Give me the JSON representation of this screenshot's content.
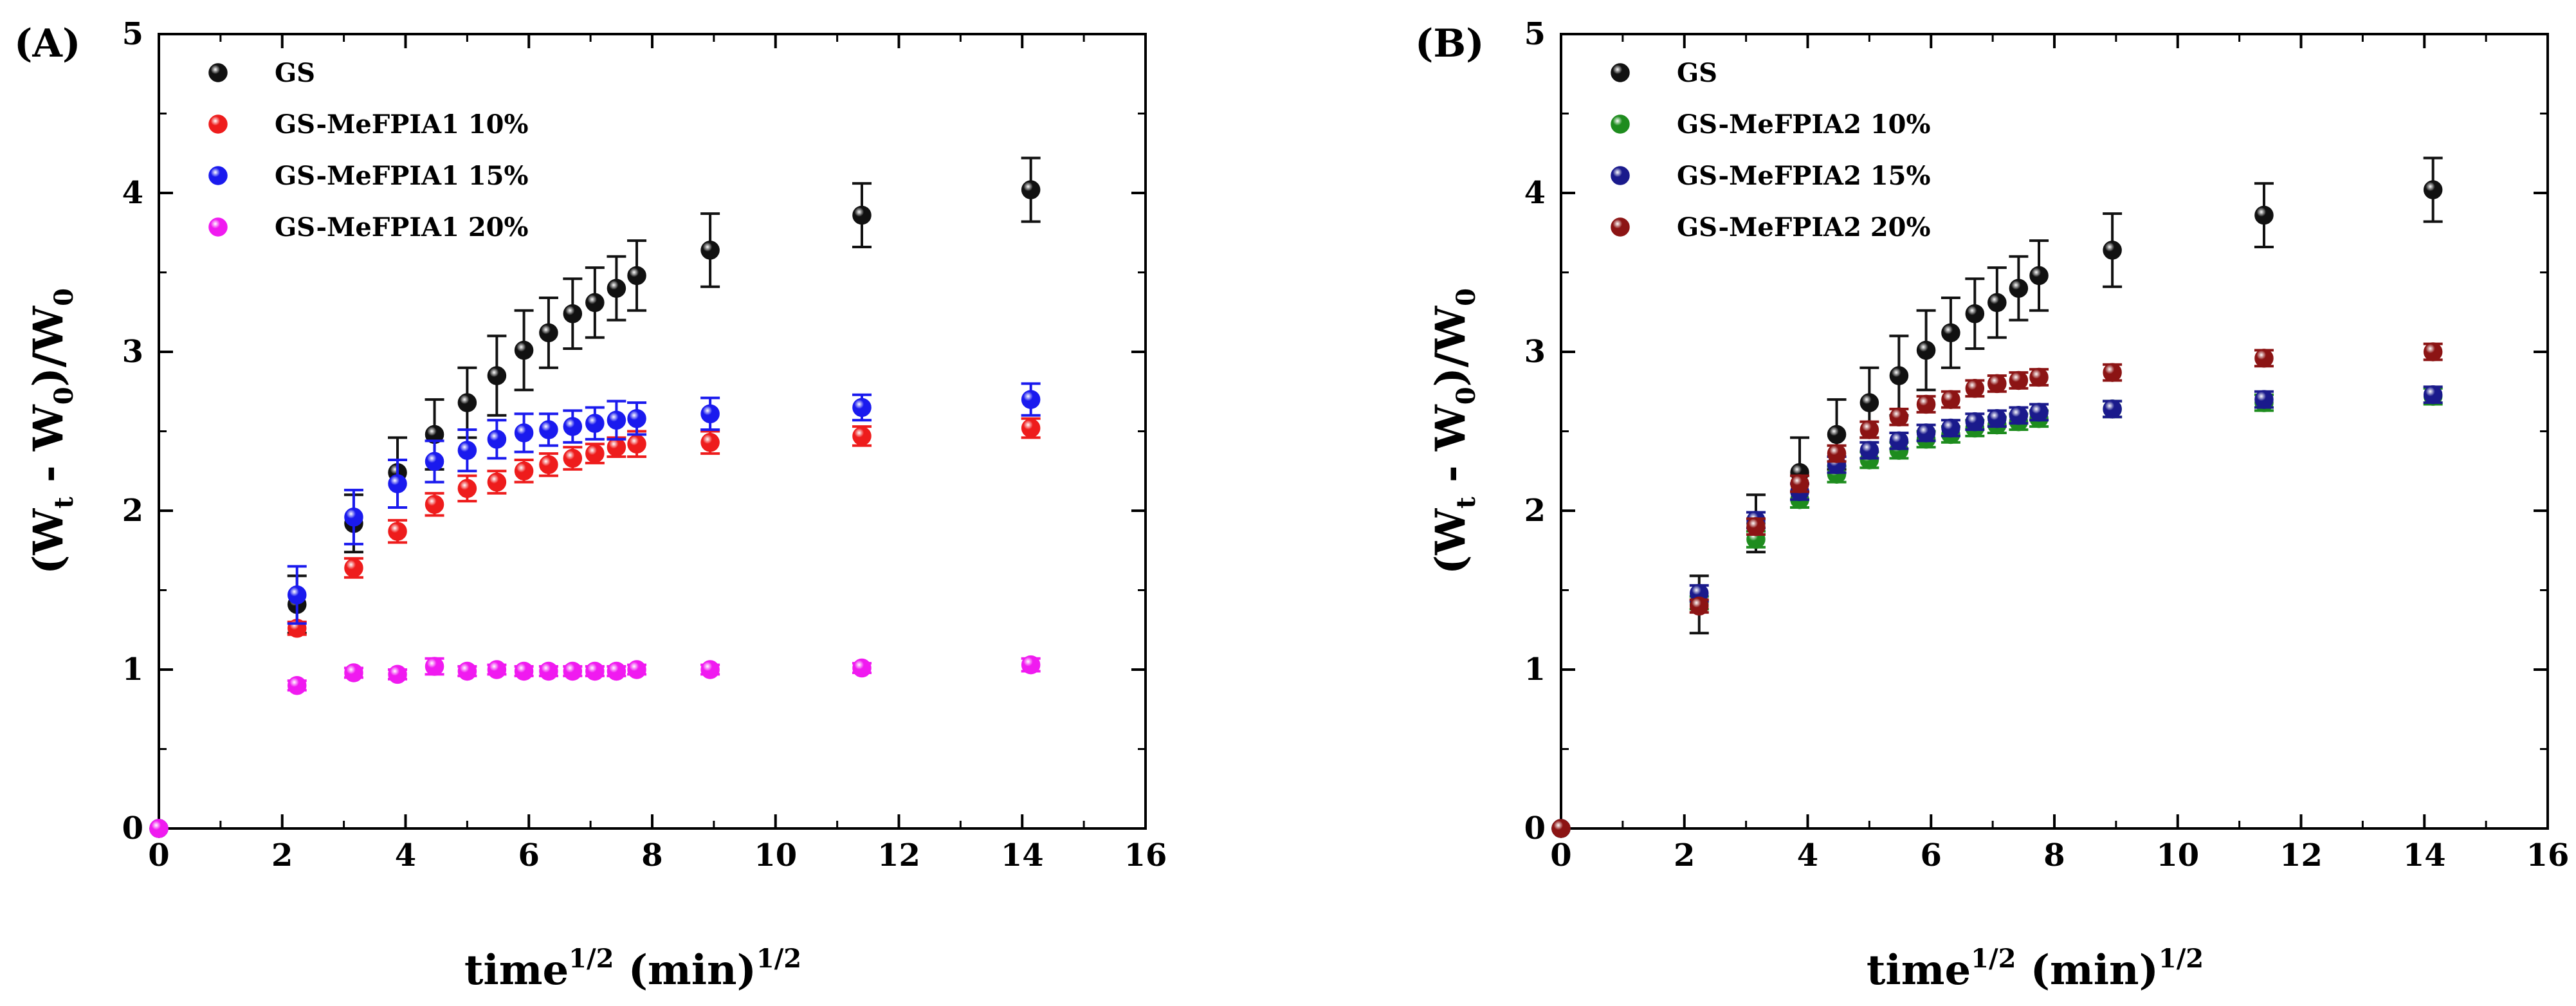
{
  "chart_data": [
    {
      "type": "scatter",
      "panel_label": "(A)",
      "xlabel": {
        "main": "time",
        "sup": "1/2",
        "units": " (min)",
        "units_sup": "1/2"
      },
      "ylabel": {
        "open": "(W",
        "sub1": "t",
        "mid": " - W",
        "sub2": "0",
        "close": ")/W",
        "sub3": "0"
      },
      "xlim": [
        0,
        16
      ],
      "ylim": [
        0,
        5
      ],
      "xticks": [
        0,
        2,
        4,
        6,
        8,
        10,
        12,
        14,
        16
      ],
      "yticks": [
        0,
        1,
        2,
        3,
        4,
        5
      ],
      "grid": false,
      "legend_position": "top-left",
      "series": [
        {
          "name": "GS",
          "color": "#111111",
          "x": [
            0,
            2.24,
            3.16,
            3.87,
            4.47,
            5.0,
            5.48,
            5.92,
            6.32,
            6.71,
            7.07,
            7.42,
            7.75,
            8.94,
            11.4,
            14.14
          ],
          "y": [
            0,
            1.41,
            1.92,
            2.24,
            2.48,
            2.68,
            2.85,
            3.01,
            3.12,
            3.24,
            3.31,
            3.4,
            3.48,
            3.64,
            3.86,
            4.02
          ],
          "err": [
            0,
            0.18,
            0.18,
            0.22,
            0.22,
            0.22,
            0.25,
            0.25,
            0.22,
            0.22,
            0.22,
            0.2,
            0.22,
            0.23,
            0.2,
            0.2
          ]
        },
        {
          "name": "GS-MeFPIA1 10%",
          "color": "#ee1c1c",
          "x": [
            0,
            2.24,
            3.16,
            3.87,
            4.47,
            5.0,
            5.48,
            5.92,
            6.32,
            6.71,
            7.07,
            7.42,
            7.75,
            8.94,
            11.4,
            14.14
          ],
          "y": [
            0,
            1.26,
            1.64,
            1.87,
            2.04,
            2.14,
            2.18,
            2.25,
            2.29,
            2.33,
            2.36,
            2.4,
            2.42,
            2.43,
            2.47,
            2.52
          ],
          "err": [
            0,
            0.04,
            0.06,
            0.07,
            0.07,
            0.08,
            0.07,
            0.07,
            0.07,
            0.07,
            0.06,
            0.06,
            0.08,
            0.07,
            0.06,
            0.06
          ]
        },
        {
          "name": "GS-MeFPIA1 15%",
          "color": "#1a1aee",
          "x": [
            0,
            2.24,
            3.16,
            3.87,
            4.47,
            5.0,
            5.48,
            5.92,
            6.32,
            6.71,
            7.07,
            7.42,
            7.75,
            8.94,
            11.4,
            14.14
          ],
          "y": [
            0,
            1.47,
            1.96,
            2.17,
            2.31,
            2.38,
            2.45,
            2.49,
            2.51,
            2.53,
            2.55,
            2.57,
            2.58,
            2.61,
            2.65,
            2.7
          ],
          "err": [
            0,
            0.18,
            0.17,
            0.15,
            0.13,
            0.13,
            0.12,
            0.12,
            0.1,
            0.1,
            0.1,
            0.12,
            0.1,
            0.1,
            0.08,
            0.1
          ]
        },
        {
          "name": "GS-MeFPIA1 20%",
          "color": "#f01af0",
          "x": [
            0,
            2.24,
            3.16,
            3.87,
            4.47,
            5.0,
            5.48,
            5.92,
            6.32,
            6.71,
            7.07,
            7.42,
            7.75,
            8.94,
            11.4,
            14.14
          ],
          "y": [
            0,
            0.9,
            0.98,
            0.97,
            1.02,
            0.99,
            1.0,
            0.99,
            0.99,
            0.99,
            0.99,
            0.99,
            1.0,
            1.0,
            1.01,
            1.03
          ],
          "err": [
            0,
            0.03,
            0.03,
            0.03,
            0.05,
            0.03,
            0.03,
            0.03,
            0.03,
            0.03,
            0.03,
            0.03,
            0.03,
            0.03,
            0.03,
            0.04
          ]
        }
      ]
    },
    {
      "type": "scatter",
      "panel_label": "(B)",
      "xlabel": {
        "main": "time",
        "sup": "1/2",
        "units": " (min)",
        "units_sup": "1/2"
      },
      "ylabel": {
        "open": "(W",
        "sub1": "t",
        "mid": " - W",
        "sub2": "0",
        "close": ")/W",
        "sub3": "0"
      },
      "xlim": [
        0,
        16
      ],
      "ylim": [
        0,
        5
      ],
      "xticks": [
        0,
        2,
        4,
        6,
        8,
        10,
        12,
        14,
        16
      ],
      "yticks": [
        0,
        1,
        2,
        3,
        4,
        5
      ],
      "grid": false,
      "legend_position": "top-left",
      "series": [
        {
          "name": "GS",
          "color": "#111111",
          "x": [
            0,
            2.24,
            3.16,
            3.87,
            4.47,
            5.0,
            5.48,
            5.92,
            6.32,
            6.71,
            7.07,
            7.42,
            7.75,
            8.94,
            11.4,
            14.14
          ],
          "y": [
            0,
            1.41,
            1.92,
            2.24,
            2.48,
            2.68,
            2.85,
            3.01,
            3.12,
            3.24,
            3.31,
            3.4,
            3.48,
            3.64,
            3.86,
            4.02
          ],
          "err": [
            0,
            0.18,
            0.18,
            0.22,
            0.22,
            0.22,
            0.25,
            0.25,
            0.22,
            0.22,
            0.22,
            0.2,
            0.22,
            0.23,
            0.2,
            0.2
          ]
        },
        {
          "name": "GS-MeFPIA2 10%",
          "color": "#1e8c1e",
          "x": [
            0,
            2.24,
            3.16,
            3.87,
            4.47,
            5.0,
            5.48,
            5.92,
            6.32,
            6.71,
            7.07,
            7.42,
            7.75,
            8.94,
            11.4,
            14.14
          ],
          "y": [
            0,
            1.42,
            1.82,
            2.07,
            2.23,
            2.32,
            2.38,
            2.45,
            2.48,
            2.52,
            2.54,
            2.56,
            2.58,
            2.64,
            2.68,
            2.72
          ],
          "err": [
            0,
            0.04,
            0.05,
            0.05,
            0.05,
            0.05,
            0.05,
            0.05,
            0.05,
            0.05,
            0.05,
            0.05,
            0.05,
            0.05,
            0.05,
            0.05
          ]
        },
        {
          "name": "GS-MeFPIA2 15%",
          "color": "#1a1a8c",
          "x": [
            0,
            2.24,
            3.16,
            3.87,
            4.47,
            5.0,
            5.48,
            5.92,
            6.32,
            6.71,
            7.07,
            7.42,
            7.75,
            8.94,
            11.4,
            14.14
          ],
          "y": [
            0,
            1.48,
            1.94,
            2.12,
            2.29,
            2.38,
            2.44,
            2.49,
            2.52,
            2.56,
            2.58,
            2.6,
            2.62,
            2.64,
            2.7,
            2.73
          ],
          "err": [
            0,
            0.05,
            0.05,
            0.05,
            0.05,
            0.05,
            0.05,
            0.05,
            0.05,
            0.05,
            0.05,
            0.05,
            0.05,
            0.05,
            0.05,
            0.05
          ]
        },
        {
          "name": "GS-MeFPIA2 20%",
          "color": "#8c1414",
          "x": [
            0,
            2.24,
            3.16,
            3.87,
            4.47,
            5.0,
            5.48,
            5.92,
            6.32,
            6.71,
            7.07,
            7.42,
            7.75,
            8.94,
            11.4,
            14.14
          ],
          "y": [
            0,
            1.4,
            1.9,
            2.17,
            2.36,
            2.51,
            2.59,
            2.67,
            2.7,
            2.77,
            2.8,
            2.82,
            2.84,
            2.87,
            2.96,
            3.0
          ],
          "err": [
            0,
            0.04,
            0.05,
            0.05,
            0.05,
            0.05,
            0.05,
            0.05,
            0.05,
            0.05,
            0.05,
            0.05,
            0.05,
            0.05,
            0.05,
            0.05
          ]
        }
      ]
    }
  ]
}
